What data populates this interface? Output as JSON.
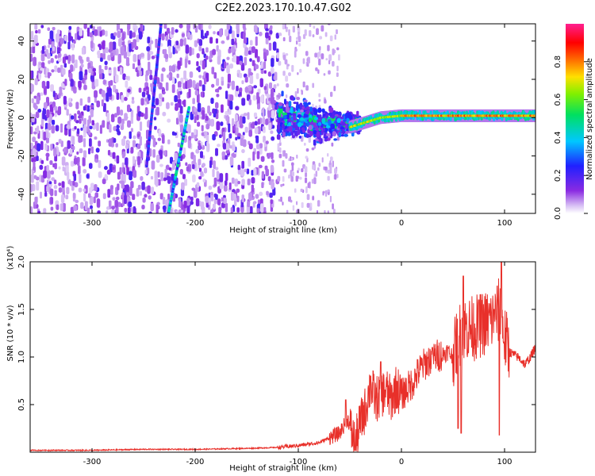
{
  "figure_title": "C2E2.2023.170.10.47.G02",
  "colors": {
    "snr_line": "#e8302a",
    "axis": "#000000",
    "spectrogram_background": "#ffffff"
  },
  "chart_data": [
    {
      "type": "heatmap",
      "title": "C2E2.2023.170.10.47.G02",
      "xlabel": "Height of straight line (km)",
      "ylabel": "Frequency (Hz)",
      "xlim": [
        -360,
        130
      ],
      "ylim": [
        -50,
        49
      ],
      "xticks": [
        -300,
        -200,
        -100,
        0,
        100
      ],
      "yticks": [
        -40,
        -20,
        0,
        20,
        40
      ],
      "colorbar": {
        "label": "Normalized spectral amplitude",
        "range": [
          0,
          1
        ],
        "ticks": [
          0.0,
          0.2,
          0.4,
          0.6,
          0.8
        ],
        "colormap": "rainbow (violet → blue → cyan → green → yellow → red → magenta)"
      },
      "features": [
        {
          "label": "broadband noise",
          "x_range": [
            -360,
            -120
          ],
          "y_range": [
            -50,
            49
          ],
          "amplitude": 0.15
        },
        {
          "label": "sparse noise",
          "x_range": [
            -120,
            -60
          ],
          "y_range": [
            -50,
            49
          ],
          "amplitude": 0.08
        },
        {
          "label": "diagonal streak",
          "x": [
            -247,
            -233
          ],
          "y": [
            -25,
            49
          ],
          "amplitude": 0.2
        },
        {
          "label": "diagonal streak",
          "x": [
            -226,
            -206
          ],
          "y": [
            -50,
            5
          ],
          "amplitude": 0.35
        },
        {
          "label": "diffuse signal",
          "x_range": [
            -120,
            -40
          ],
          "y_center": 0,
          "y_halfwidth": 12,
          "amplitude": 0.4
        },
        {
          "label": "narrowband carrier",
          "x_range": [
            -50,
            130
          ],
          "y": [
            [
              -50,
              -5
            ],
            [
              -20,
              0
            ],
            [
              0,
              1
            ],
            [
              130,
              1
            ]
          ],
          "amplitude": 0.85
        }
      ]
    },
    {
      "type": "line",
      "xlabel": "Height of straight line (km)",
      "ylabel": "SNR (10 * v/v)",
      "y_multiplier": "(x10⁴)",
      "xlim": [
        -360,
        130
      ],
      "ylim": [
        0,
        2.0
      ],
      "xticks": [
        -300,
        -200,
        -100,
        0,
        100
      ],
      "yticks": [
        0.5,
        1.0,
        1.5,
        2.0
      ],
      "series": [
        {
          "x": [
            -360,
            -300,
            -250,
            -200,
            -150,
            -120,
            -100,
            -80,
            -60,
            -52,
            -45,
            -40,
            -35,
            -30,
            -25,
            -20,
            -15,
            -10,
            -5,
            0,
            10,
            20,
            30,
            40,
            45,
            50,
            55,
            60,
            70,
            80,
            90,
            95,
            100,
            105,
            110,
            115,
            120,
            125,
            130
          ],
          "y": [
            0.02,
            0.02,
            0.03,
            0.03,
            0.04,
            0.05,
            0.07,
            0.1,
            0.2,
            0.35,
            0.08,
            0.3,
            0.45,
            0.7,
            0.55,
            0.6,
            0.65,
            0.55,
            0.68,
            0.6,
            0.72,
            0.9,
            1.0,
            1.03,
            1.06,
            1.0,
            1.2,
            1.3,
            1.3,
            1.35,
            1.4,
            1.5,
            1.2,
            1.05,
            1.02,
            0.98,
            0.92,
            1.0,
            1.1
          ],
          "peaks": [
            [
              -54,
              0.55
            ],
            [
              -30,
              0.8
            ],
            [
              -20,
              0.95
            ],
            [
              30,
              1.1
            ],
            [
              55,
              1.75
            ],
            [
              60,
              1.85
            ],
            [
              75,
              1.6
            ],
            [
              90,
              1.5
            ],
            [
              97,
              2.0
            ]
          ],
          "dips": [
            [
              -45,
              0.02
            ],
            [
              55,
              0.25
            ],
            [
              58,
              0.2
            ],
            [
              95,
              0.18
            ]
          ]
        }
      ]
    }
  ]
}
